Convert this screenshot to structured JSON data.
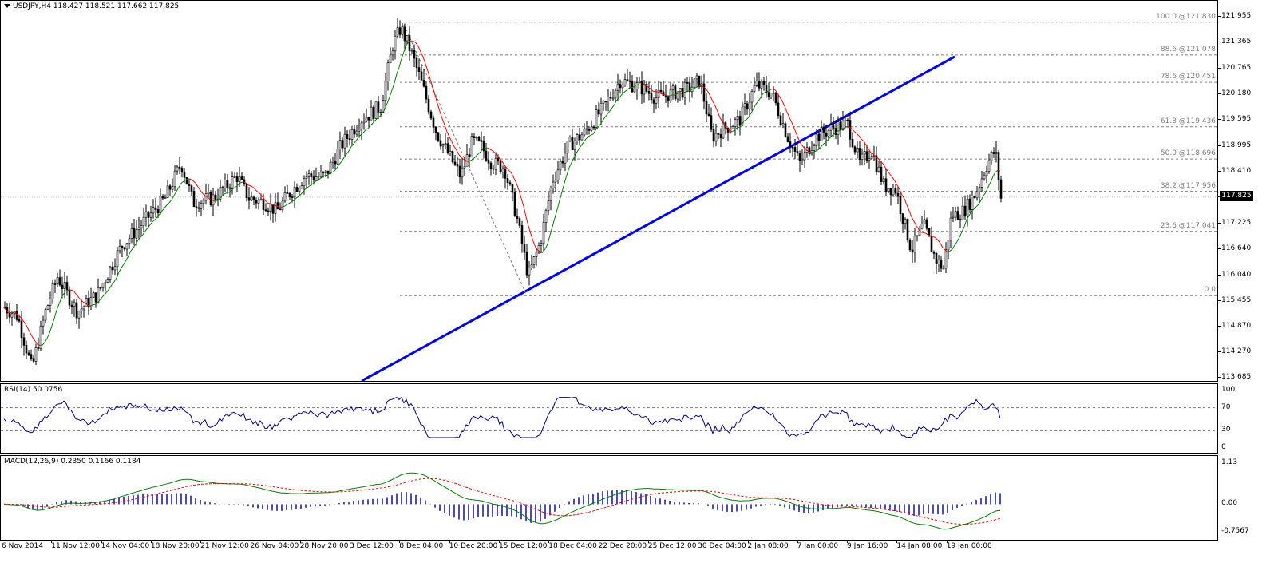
{
  "header": {
    "symbol_line": "USDJPY,H4  118.427 118.521 117.662 117.825"
  },
  "price_axis": {
    "labels": [
      "121.955",
      "121.365",
      "120.765",
      "120.180",
      "119.595",
      "118.995",
      "118.410",
      "117.825",
      "117.225",
      "116.640",
      "116.040",
      "115.455",
      "114.870",
      "114.270",
      "113.685"
    ],
    "values": [
      121.955,
      121.365,
      120.765,
      120.18,
      119.595,
      118.995,
      118.41,
      117.825,
      117.225,
      116.64,
      116.04,
      115.455,
      114.87,
      114.27,
      113.685
    ],
    "min": 113.6,
    "max": 122.3,
    "current_badge": "117.825",
    "current": 117.825
  },
  "fibonacci": [
    {
      "label": "100.0   @121.830",
      "price": 121.83
    },
    {
      "label": "88.6   @121.078",
      "price": 121.078
    },
    {
      "label": "78.6   @120.451",
      "price": 120.451
    },
    {
      "label": "61.8   @119.436",
      "price": 119.436
    },
    {
      "label": "50.0   @118.696",
      "price": 118.696
    },
    {
      "label": "38.2   @117.956",
      "price": 117.956
    },
    {
      "label": "23.6   @117.041",
      "price": 117.041
    },
    {
      "label": "0.0",
      "price": 115.57
    }
  ],
  "rsi": {
    "title": "RSI(14) 50.0756",
    "axis_labels": [
      "100",
      "70",
      "30",
      "0"
    ],
    "axis_values": [
      100,
      70,
      30,
      0
    ],
    "levels": [
      70,
      30
    ]
  },
  "macd": {
    "title": "MACD(12,26,9) 0.2350 0.1166 0.1184",
    "axis_labels": [
      "1.13",
      "0.00",
      "-0.7567"
    ],
    "axis_values": [
      1.13,
      0.0,
      -0.7567
    ]
  },
  "time_axis": {
    "labels": [
      "6 Nov 2014",
      "11 Nov 12:00",
      "14 Nov 04:00",
      "18 Nov 20:00",
      "21 Nov 12:00",
      "26 Nov 04:00",
      "28 Nov 20:00",
      "3 Dec 12:00",
      "8 Dec 04:00",
      "10 Dec 20:00",
      "15 Dec 12:00",
      "18 Dec 04:00",
      "22 Dec 20:00",
      "25 Dec 12:00",
      "30 Dec 04:00",
      "2 Jan 08:00",
      "7 Jan 00:00",
      "9 Jan 16:00",
      "14 Jan 08:00",
      "19 Jan 00:00"
    ]
  },
  "colors": {
    "candle": "#000000",
    "trendline": "#0000ff",
    "ma_up": "#008000",
    "ma_down": "#ff0000",
    "rsi_line": "#00008b",
    "macd_hist": "#00008b",
    "macd_line": "#008000",
    "macd_signal": "#ff0000",
    "fib": "#7f7f7f"
  }
}
